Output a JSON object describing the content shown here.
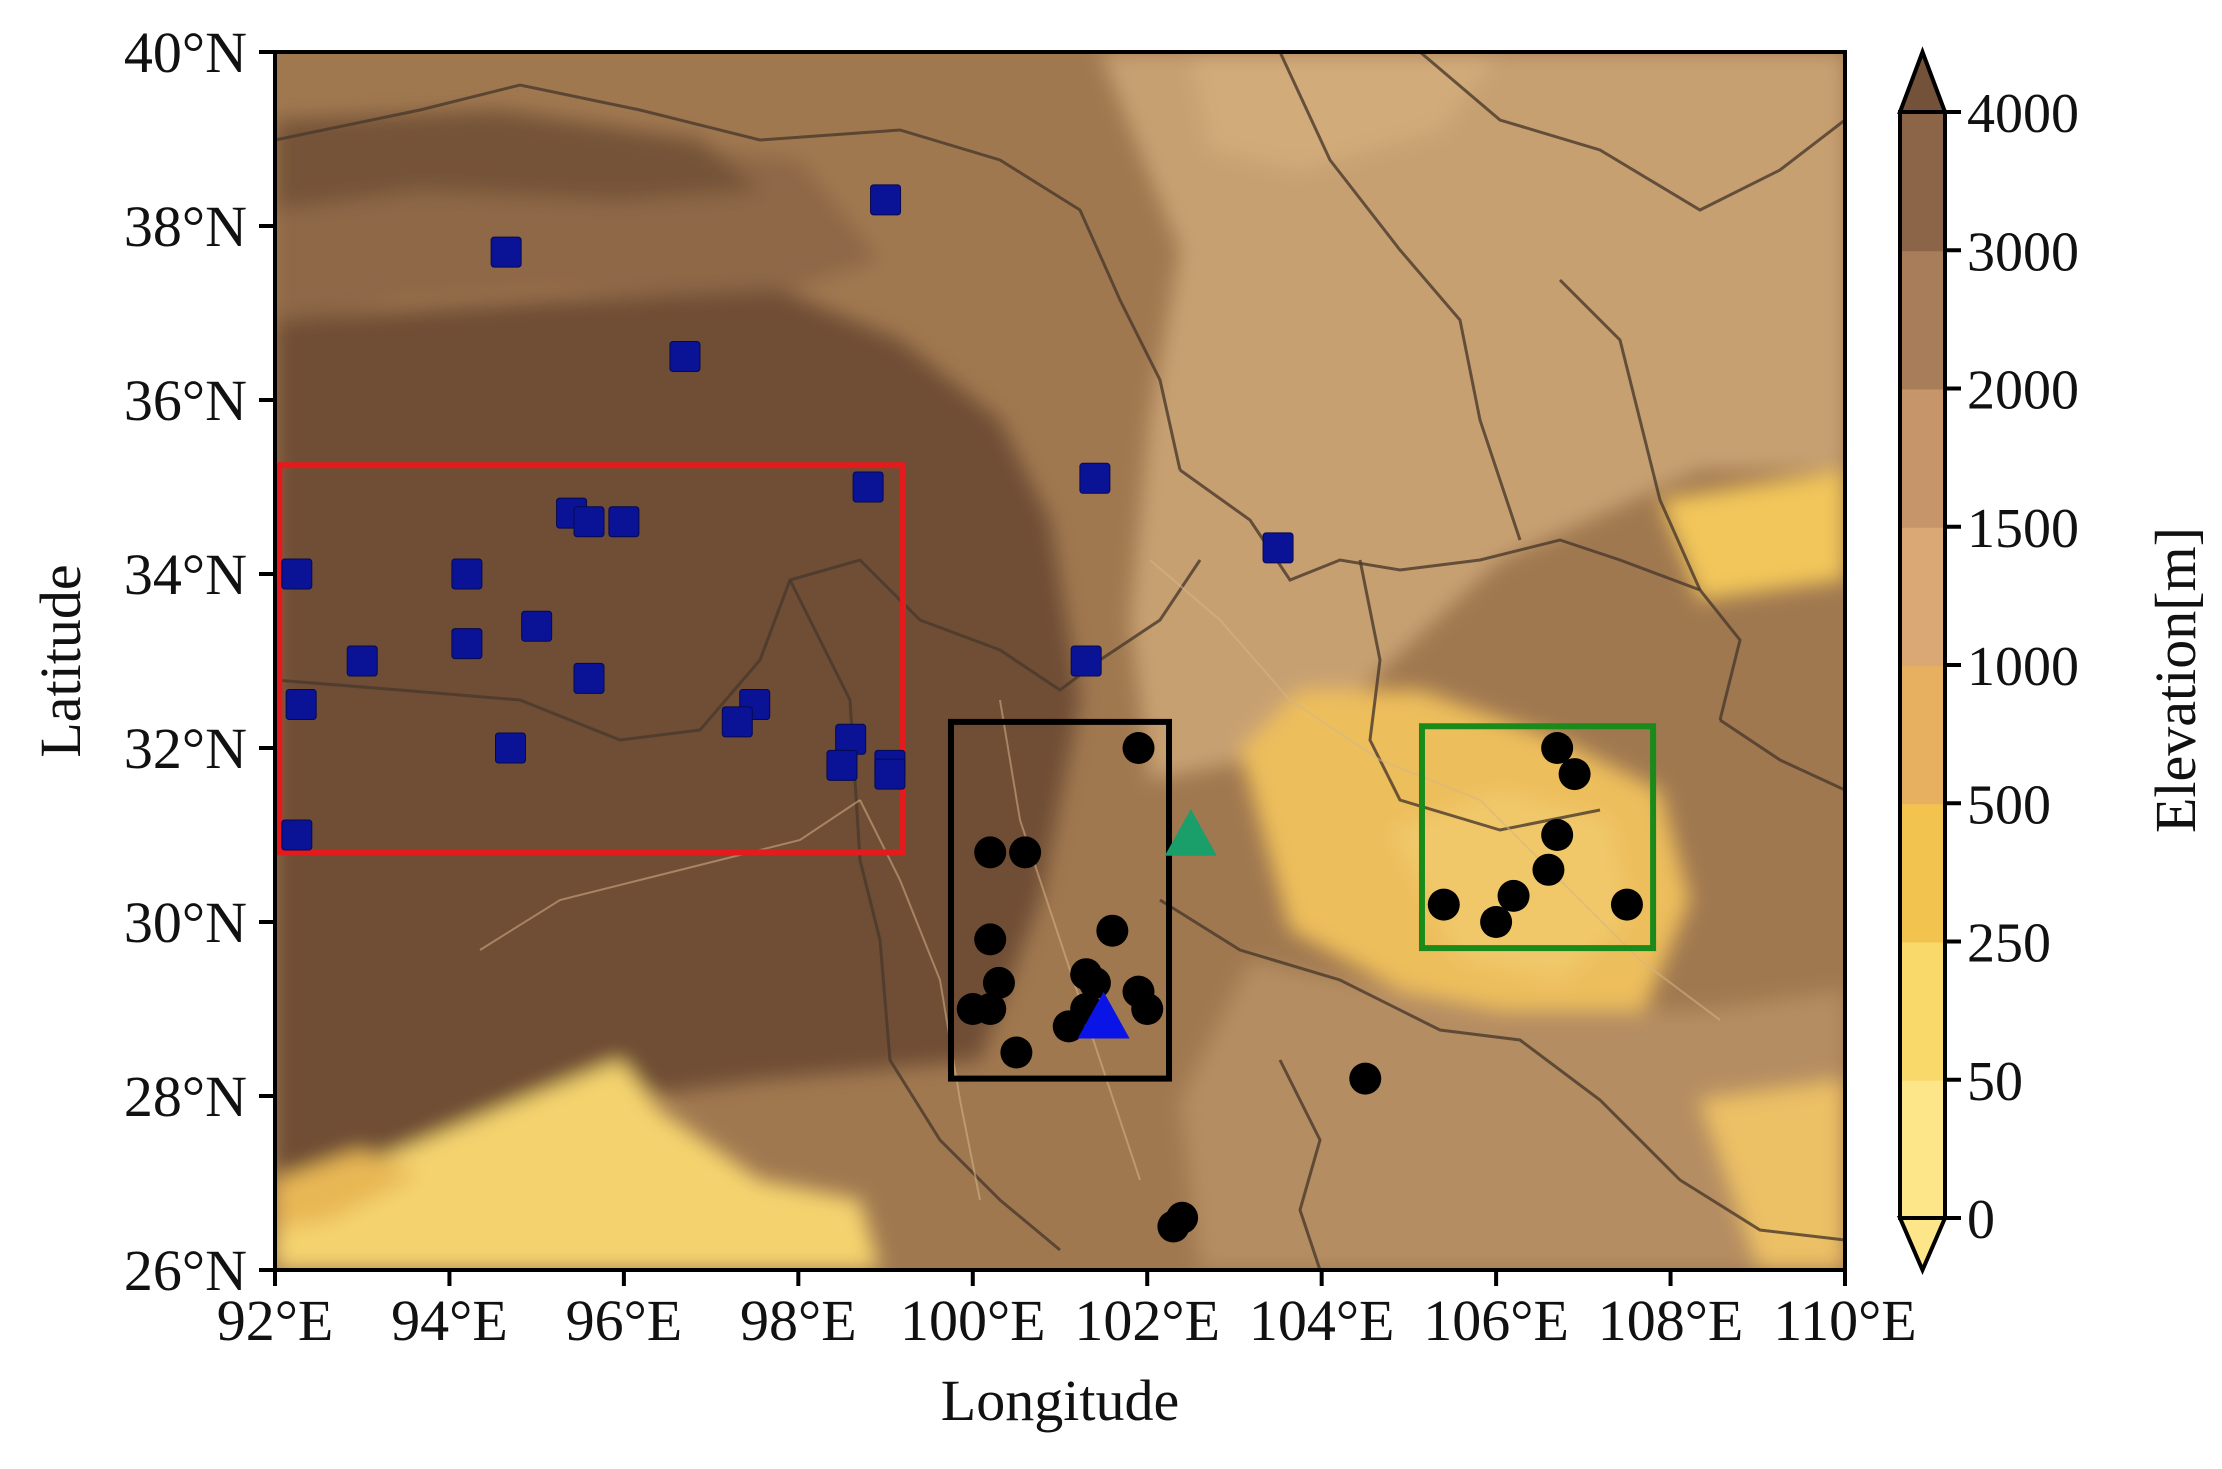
{
  "map": {
    "xlabel": "Longitude",
    "ylabel": "Latitude",
    "lon_range": [
      92,
      110
    ],
    "lat_range": [
      26,
      40
    ],
    "lon_ticks": [
      {
        "value": 92,
        "label": "92°E"
      },
      {
        "value": 94,
        "label": "94°E"
      },
      {
        "value": 96,
        "label": "96°E"
      },
      {
        "value": 98,
        "label": "98°E"
      },
      {
        "value": 100,
        "label": "100°E"
      },
      {
        "value": 102,
        "label": "102°E"
      },
      {
        "value": 104,
        "label": "104°E"
      },
      {
        "value": 106,
        "label": "106°E"
      },
      {
        "value": 108,
        "label": "108°E"
      },
      {
        "value": 110,
        "label": "110°E"
      }
    ],
    "lat_ticks": [
      {
        "value": 26,
        "label": "26°N"
      },
      {
        "value": 28,
        "label": "28°N"
      },
      {
        "value": 30,
        "label": "30°N"
      },
      {
        "value": 32,
        "label": "32°N"
      },
      {
        "value": 34,
        "label": "34°N"
      },
      {
        "value": 36,
        "label": "36°N"
      },
      {
        "value": 38,
        "label": "38°N"
      },
      {
        "value": 40,
        "label": "40°N"
      }
    ],
    "colorbar": {
      "title": "Elevation[m]",
      "levels": [
        "0",
        "50",
        "250",
        "500",
        "1000",
        "1500",
        "2000",
        "3000",
        "4000"
      ],
      "colors": [
        "#fde68a",
        "#f9d96a",
        "#f3c350",
        "#e7b060",
        "#d9a874",
        "#c6966a",
        "#a87e5a",
        "#8c6447",
        "#735239"
      ]
    },
    "regions": [
      {
        "color": "#e41a1c",
        "lon": [
          92.05,
          99.2
        ],
        "lat": [
          30.8,
          35.25
        ]
      },
      {
        "color": "#000000",
        "lon": [
          99.75,
          102.25
        ],
        "lat": [
          28.2,
          32.3
        ]
      },
      {
        "color": "#1a8a1a",
        "lon": [
          105.15,
          107.8
        ],
        "lat": [
          29.7,
          32.25
        ]
      }
    ],
    "blue_squares": [
      [
        94.65,
        37.7
      ],
      [
        99.0,
        38.3
      ],
      [
        96.7,
        36.5
      ],
      [
        101.4,
        35.1
      ],
      [
        103.5,
        34.3
      ],
      [
        98.8,
        35.0
      ],
      [
        95.4,
        34.7
      ],
      [
        95.6,
        34.6
      ],
      [
        96.0,
        34.6
      ],
      [
        92.25,
        34.0
      ],
      [
        94.2,
        34.0
      ],
      [
        95.0,
        33.4
      ],
      [
        94.2,
        33.2
      ],
      [
        93.0,
        33.0
      ],
      [
        95.6,
        32.8
      ],
      [
        101.3,
        33.0
      ],
      [
        92.3,
        32.5
      ],
      [
        97.5,
        32.5
      ],
      [
        97.3,
        32.3
      ],
      [
        98.6,
        32.1
      ],
      [
        94.7,
        32.0
      ],
      [
        98.5,
        31.8
      ],
      [
        99.05,
        31.8
      ],
      [
        99.05,
        31.7
      ],
      [
        92.25,
        31.0
      ]
    ],
    "black_dots": [
      [
        101.9,
        32.0
      ],
      [
        100.2,
        30.8
      ],
      [
        100.6,
        30.8
      ],
      [
        100.2,
        29.8
      ],
      [
        101.6,
        29.9
      ],
      [
        100.3,
        29.3
      ],
      [
        101.3,
        29.4
      ],
      [
        101.4,
        29.3
      ],
      [
        101.9,
        29.2
      ],
      [
        100.0,
        29.0
      ],
      [
        100.2,
        29.0
      ],
      [
        102.0,
        29.0
      ],
      [
        101.1,
        28.8
      ],
      [
        100.5,
        28.5
      ],
      [
        101.3,
        29.0
      ],
      [
        104.5,
        28.2
      ],
      [
        102.3,
        26.5
      ],
      [
        102.4,
        26.6
      ],
      [
        106.7,
        32.0
      ],
      [
        106.9,
        31.7
      ],
      [
        106.7,
        31.0
      ],
      [
        106.6,
        30.6
      ],
      [
        106.2,
        30.3
      ],
      [
        105.4,
        30.2
      ],
      [
        106.0,
        30.0
      ],
      [
        107.5,
        30.2
      ]
    ],
    "markers_triangle": [
      {
        "color": "#1a9e6a",
        "lon": 102.5,
        "lat": 31.0
      },
      {
        "color": "#0a14e6",
        "lon": 101.5,
        "lat": 28.9
      }
    ]
  }
}
